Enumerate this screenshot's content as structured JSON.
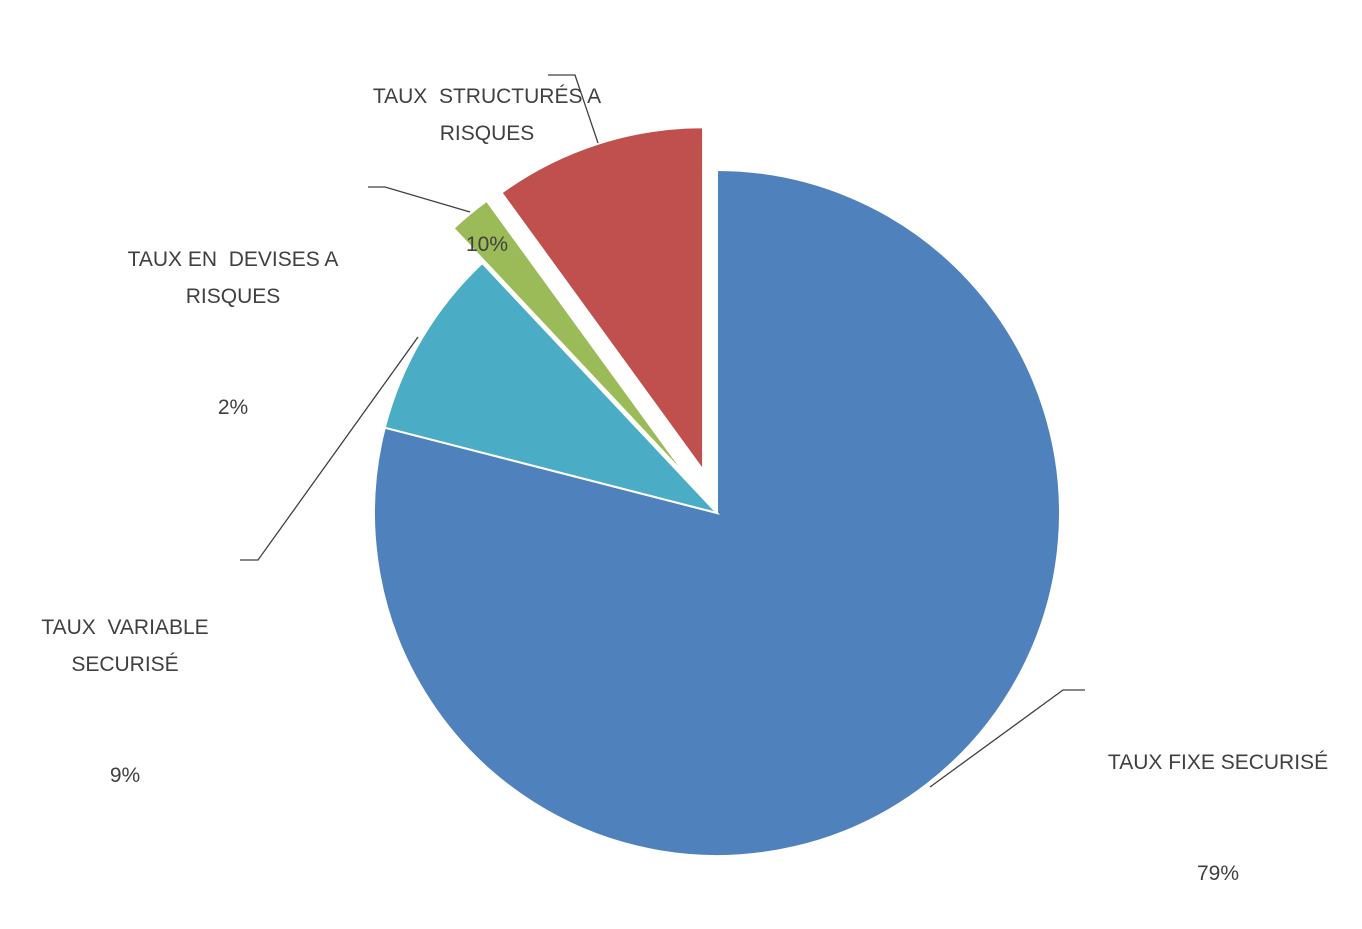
{
  "chart_data": {
    "type": "pie",
    "categories": [
      "TAUX FIXE SECURISÉ",
      "TAUX  VARIABLE SECURISÉ",
      "TAUX EN  DEVISES A RISQUES",
      "TAUX  STRUCTURÉS A RISQUES"
    ],
    "values": [
      79,
      9,
      2,
      10
    ],
    "value_labels": [
      "79%",
      "9%",
      "2%",
      "10%"
    ],
    "colors": [
      "#4f81bd",
      "#4bacc6",
      "#9bbb59",
      "#c0504d"
    ]
  }
}
